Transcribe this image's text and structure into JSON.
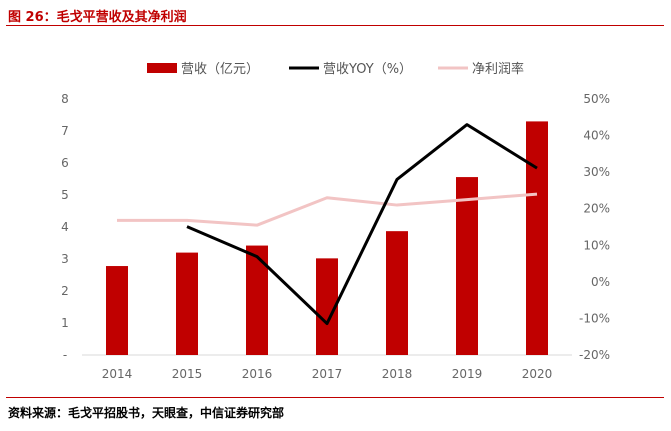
{
  "figure_title": "图 26：毛戈平营收及其净利润",
  "source": "资料来源：毛戈平招股书，天眼查，中信证券研究部",
  "chart_data": {
    "type": "bar+line",
    "categories": [
      "2014",
      "2015",
      "2016",
      "2017",
      "2018",
      "2019",
      "2020"
    ],
    "series": [
      {
        "name": "营收（亿元）",
        "type": "bar",
        "axis": "left",
        "color": "#c00000",
        "values": [
          2.78,
          3.2,
          3.42,
          3.02,
          3.87,
          5.56,
          7.3
        ]
      },
      {
        "name": "营收YOY（%）",
        "type": "line",
        "axis": "right",
        "color": "#000000",
        "values": [
          null,
          15.1,
          6.9,
          -11.4,
          28.0,
          43.0,
          31.1
        ]
      },
      {
        "name": "净利润率",
        "type": "line",
        "axis": "right",
        "color": "#f2c4c4",
        "values": [
          16.8,
          16.8,
          15.5,
          23.0,
          21.0,
          22.5,
          24.0
        ]
      }
    ],
    "left_axis": {
      "min": 0,
      "max": 8,
      "ticks": [
        "-",
        "1",
        "2",
        "3",
        "4",
        "5",
        "6",
        "7",
        "8"
      ]
    },
    "right_axis": {
      "min": -20,
      "max": 50,
      "ticks": [
        "-20%",
        "-10%",
        "0%",
        "10%",
        "20%",
        "30%",
        "40%",
        "50%"
      ]
    },
    "legend_position": "top"
  }
}
